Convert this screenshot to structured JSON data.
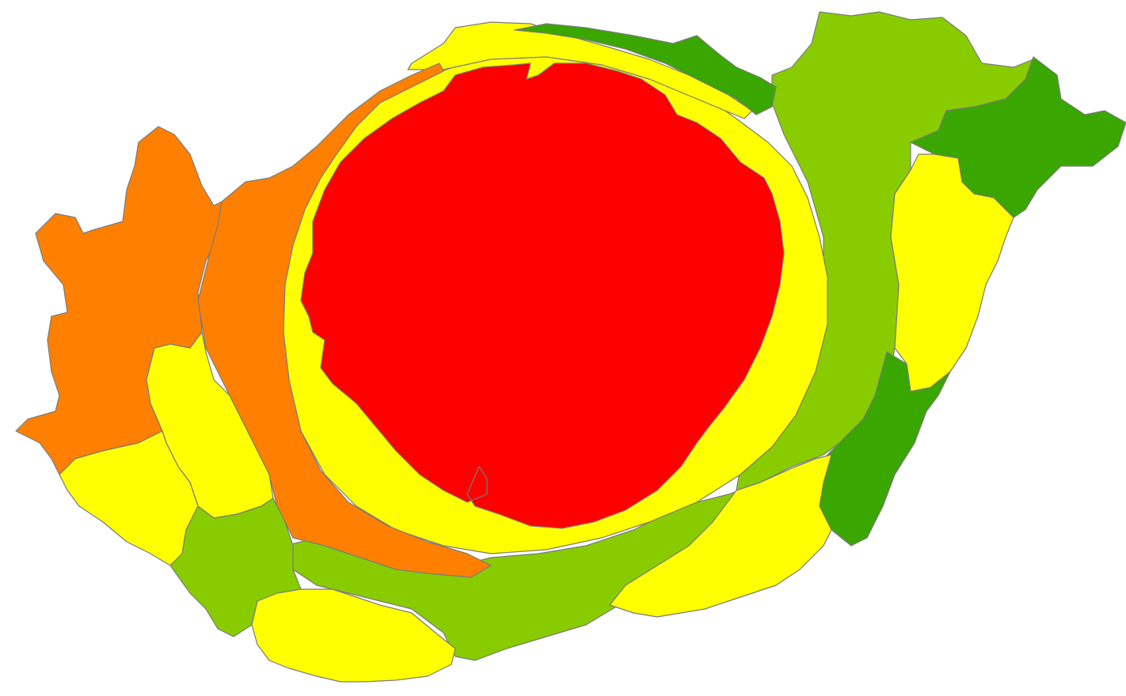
{
  "map": {
    "kind": "cartogram",
    "classes": {
      "c1": "#ff0000",
      "c2": "#ff8000",
      "c3": "#ffff00",
      "c4": "#88cc00",
      "c5": "#3aa600"
    },
    "outline_color": "#7a7a7a",
    "regions": [
      {
        "id": "west-orange",
        "class": "c2"
      },
      {
        "id": "central-west-orange",
        "class": "c2"
      },
      {
        "id": "south-west-yellow",
        "class": "c3"
      },
      {
        "id": "south-west-yellow-2",
        "class": "c3"
      },
      {
        "id": "south-green",
        "class": "c4"
      },
      {
        "id": "south-yellow",
        "class": "c3"
      },
      {
        "id": "south-band-green",
        "class": "c4"
      },
      {
        "id": "ring-yellow",
        "class": "c3"
      },
      {
        "id": "top-yellow",
        "class": "c3"
      },
      {
        "id": "top-dark-green",
        "class": "c5"
      },
      {
        "id": "north-east-green",
        "class": "c4"
      },
      {
        "id": "far-east-dark-green",
        "class": "c5"
      },
      {
        "id": "east-yellow",
        "class": "c3"
      },
      {
        "id": "south-east-dark-green",
        "class": "c5"
      },
      {
        "id": "south-east-yellow",
        "class": "c3"
      },
      {
        "id": "centre-red",
        "class": "c1"
      }
    ]
  }
}
